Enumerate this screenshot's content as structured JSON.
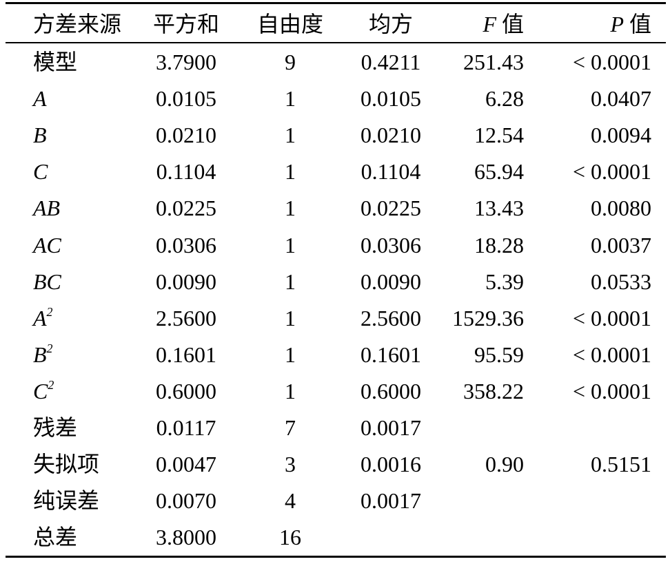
{
  "table": {
    "headers": [
      "方差来源",
      "平方和",
      "自由度",
      "均方",
      "F 值",
      "P 值"
    ],
    "rows": [
      {
        "source": "模型",
        "values": [
          "3.7900",
          "9",
          "0.4211",
          "251.43",
          "< 0.0001"
        ]
      },
      {
        "source": "A",
        "values": [
          "0.0105",
          "1",
          "0.0105",
          "6.28",
          "0.0407"
        ]
      },
      {
        "source": "B",
        "values": [
          "0.0210",
          "1",
          "0.0210",
          "12.54",
          "0.0094"
        ]
      },
      {
        "source": "C",
        "values": [
          "0.1104",
          "1",
          "0.1104",
          "65.94",
          "< 0.0001"
        ]
      },
      {
        "source": "AB",
        "values": [
          "0.0225",
          "1",
          "0.0225",
          "13.43",
          "0.0080"
        ]
      },
      {
        "source": "AC",
        "values": [
          "0.0306",
          "1",
          "0.0306",
          "18.28",
          "0.0037"
        ]
      },
      {
        "source": "BC",
        "values": [
          "0.0090",
          "1",
          "0.0090",
          "5.39",
          "0.0533"
        ]
      },
      {
        "source": "A",
        "sup": "2",
        "values": [
          "2.5600",
          "1",
          "2.5600",
          "1529.36",
          "< 0.0001"
        ]
      },
      {
        "source": "B",
        "sup": "2",
        "values": [
          "0.1601",
          "1",
          "0.1601",
          "95.59",
          "< 0.0001"
        ]
      },
      {
        "source": "C",
        "sup": "2",
        "values": [
          "0.6000",
          "1",
          "0.6000",
          "358.22",
          "< 0.0001"
        ]
      },
      {
        "source": "残差",
        "values": [
          "0.0117",
          "7",
          "0.0017",
          null,
          null
        ]
      },
      {
        "source": "失拟项",
        "values": [
          "0.0047",
          "3",
          "0.0016",
          "0.90",
          "0.5151"
        ]
      },
      {
        "source": "纯误差",
        "values": [
          "0.0070",
          "4",
          "0.0017",
          null,
          null
        ]
      },
      {
        "source": "总差",
        "values": [
          "3.8000",
          "16",
          null,
          null,
          null
        ]
      }
    ]
  }
}
